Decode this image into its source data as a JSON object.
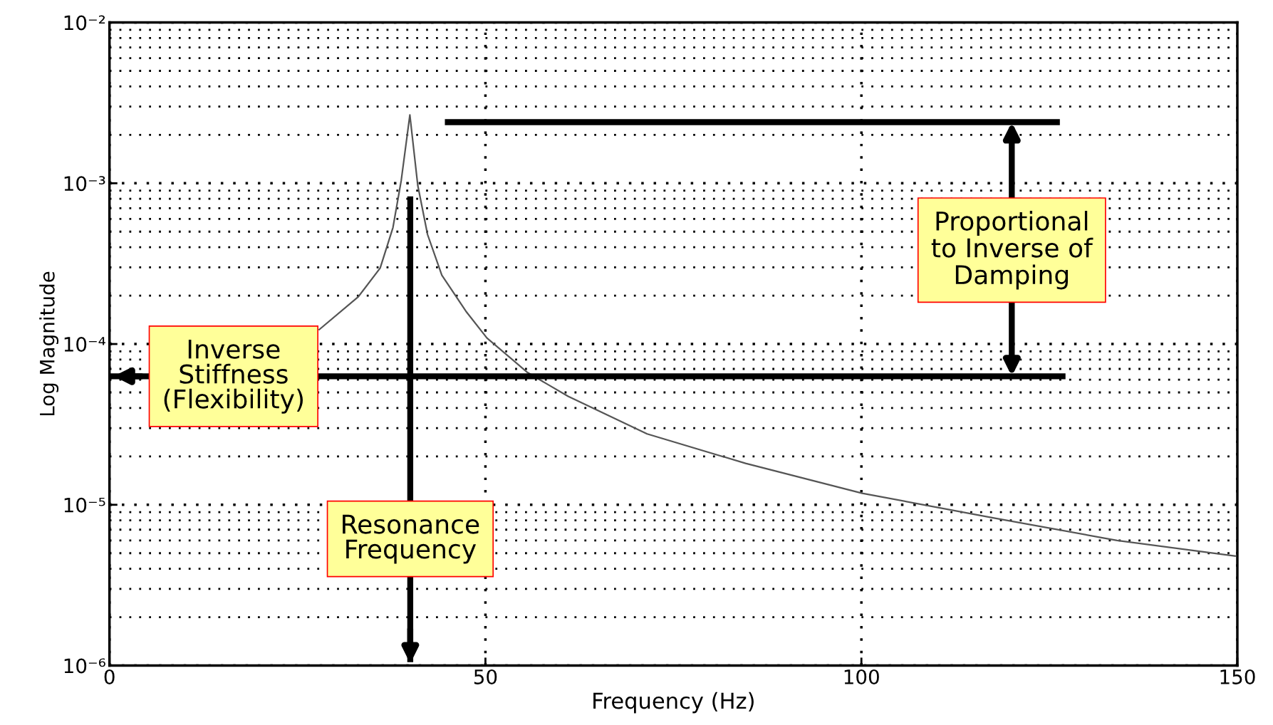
{
  "chart_data": {
    "type": "line",
    "xlabel": "Frequency (Hz)",
    "ylabel": "Log Magnitude",
    "log": "y",
    "grid": true,
    "line_style": "solid",
    "marker": "none",
    "series": [
      {
        "color": "#555555",
        "x": [
          27.9,
          33.1,
          36.0,
          37.7,
          38.8,
          39.95,
          41.0,
          42.3,
          44.2,
          47.4,
          50.2,
          55.6,
          58.3,
          61.0,
          71.5,
          84.6,
          100.1,
          117.5,
          134.0,
          149.7
        ],
        "values": [
          0.000123,
          0.000197,
          0.000297,
          0.00053,
          0.00104,
          0.00266,
          0.00097,
          0.00048,
          0.000268,
          0.00016,
          0.000109,
          6.65e-05,
          5.6e-05,
          4.73e-05,
          2.76e-05,
          1.81e-05,
          1.18e-05,
          8.3e-06,
          6e-06,
          4.8e-06
        ]
      }
    ],
    "xlim": [
      0,
      150
    ],
    "xticks": [
      0,
      50,
      100,
      150
    ],
    "ylim": [
      1e-06,
      0.01
    ],
    "yticks": [
      {
        "value": 1e-06,
        "label": "10⁻⁶"
      },
      {
        "value": 1e-05,
        "label": "10⁻⁵"
      },
      {
        "value": 0.0001,
        "label": "10⁻⁴"
      },
      {
        "value": 0.001,
        "label": "10⁻³"
      },
      {
        "value": 0.01,
        "label": "10⁻²"
      }
    ],
    "ref_lines": [
      {
        "axis": "y",
        "value": 0.0024,
        "color": "#000000"
      },
      {
        "axis": "y",
        "value": 6.3e-05,
        "label": "Inverse\nStiffness\n(Flexibility)",
        "color": "#000000"
      },
      {
        "axis": "x",
        "value": 40,
        "label": "Resonance\nFrequency",
        "color": "#000000"
      }
    ],
    "annotations": [
      "Proportional\nto Inverse of\nDamping"
    ]
  }
}
